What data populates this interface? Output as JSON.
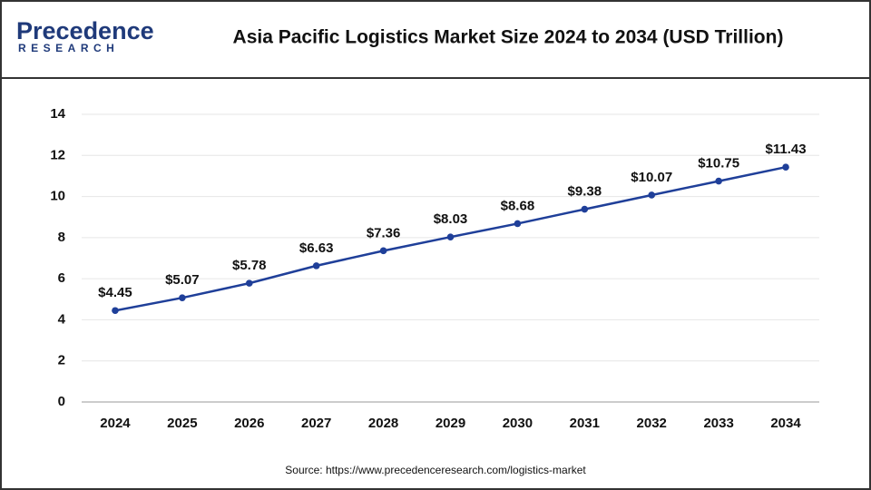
{
  "logo": {
    "name": "Precedence",
    "tagline": "RESEARCH"
  },
  "chart_data": {
    "type": "line",
    "title": "Asia Pacific Logistics Market Size 2024 to 2034 (USD Trillion)",
    "categories": [
      "2024",
      "2025",
      "2026",
      "2027",
      "2028",
      "2029",
      "2030",
      "2031",
      "2032",
      "2033",
      "2034"
    ],
    "series": [
      {
        "name": "Market Size",
        "color": "#1f3f99",
        "values": [
          4.45,
          5.07,
          5.78,
          6.63,
          7.36,
          8.03,
          8.68,
          9.38,
          10.07,
          10.75,
          11.43
        ],
        "value_labels": [
          "$4.45",
          "$5.07",
          "$5.78",
          "$6.63",
          "$7.36",
          "$8.03",
          "$8.68",
          "$9.38",
          "$10.07",
          "$10.75",
          "$11.43"
        ]
      }
    ],
    "ylim": [
      0,
      14
    ],
    "yticks": [
      0,
      2,
      4,
      6,
      8,
      10,
      12,
      14
    ],
    "grid": true,
    "source": "Source: https://www.precedenceresearch.com/logistics-market"
  }
}
